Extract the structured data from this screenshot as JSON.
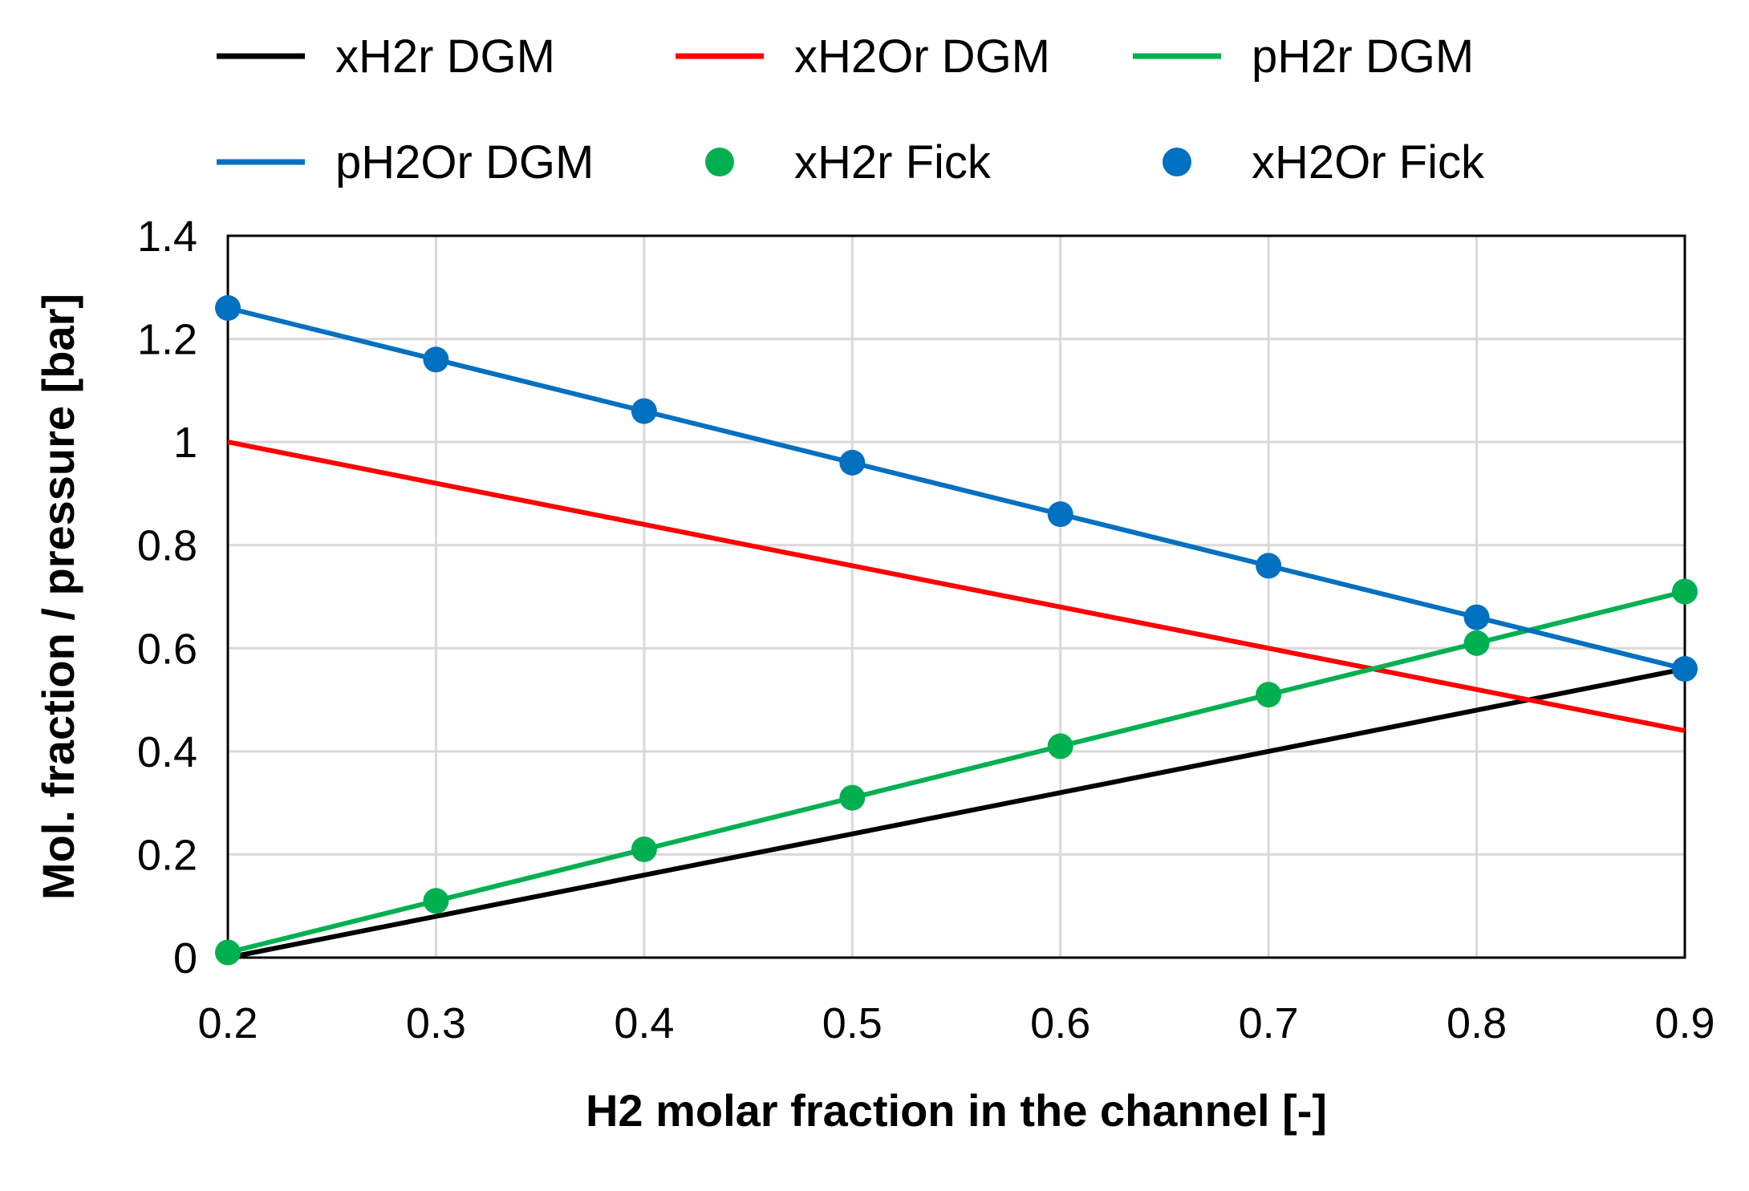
{
  "chart_data": {
    "type": "line",
    "title": "",
    "xlabel": "H2 molar fraction in the channel [-]",
    "ylabel": "Mol. fraction / pressure [bar]",
    "xlim": [
      0.2,
      0.9
    ],
    "ylim": [
      0,
      1.4
    ],
    "x_ticks": [
      "0.2",
      "0.3",
      "0.4",
      "0.5",
      "0.6",
      "0.7",
      "0.8",
      "0.9"
    ],
    "y_ticks": [
      "0",
      "0.2",
      "0.4",
      "0.6",
      "0.8",
      "1",
      "1.2",
      "1.4"
    ],
    "grid": true,
    "legend_position": "top",
    "series": [
      {
        "name": "xH2r DGM",
        "style": "line",
        "color": "#000000",
        "x": [
          0.2,
          0.9
        ],
        "y": [
          0.0,
          0.56
        ]
      },
      {
        "name": "xH2Or DGM",
        "style": "line",
        "color": "#FF0000",
        "x": [
          0.2,
          0.9
        ],
        "y": [
          1.0,
          0.44
        ]
      },
      {
        "name": "pH2r DGM",
        "style": "line",
        "color": "#00B050",
        "x": [
          0.2,
          0.3,
          0.4,
          0.5,
          0.6,
          0.7,
          0.8,
          0.9
        ],
        "y": [
          0.01,
          0.11,
          0.21,
          0.31,
          0.41,
          0.51,
          0.61,
          0.71
        ]
      },
      {
        "name": "pH2Or DGM",
        "style": "line",
        "color": "#0070C0",
        "x": [
          0.2,
          0.3,
          0.4,
          0.5,
          0.6,
          0.7,
          0.8,
          0.9
        ],
        "y": [
          1.26,
          1.16,
          1.06,
          0.96,
          0.86,
          0.76,
          0.66,
          0.56
        ]
      },
      {
        "name": "xH2r Fick",
        "style": "marker",
        "color": "#00B050",
        "x": [
          0.2,
          0.3,
          0.4,
          0.5,
          0.6,
          0.7,
          0.8,
          0.9
        ],
        "y": [
          0.01,
          0.11,
          0.21,
          0.31,
          0.41,
          0.51,
          0.61,
          0.71
        ]
      },
      {
        "name": "xH2Or Fick",
        "style": "marker",
        "color": "#0070C0",
        "x": [
          0.2,
          0.3,
          0.4,
          0.5,
          0.6,
          0.7,
          0.8,
          0.9
        ],
        "y": [
          1.26,
          1.16,
          1.06,
          0.96,
          0.86,
          0.76,
          0.66,
          0.56
        ]
      }
    ]
  }
}
